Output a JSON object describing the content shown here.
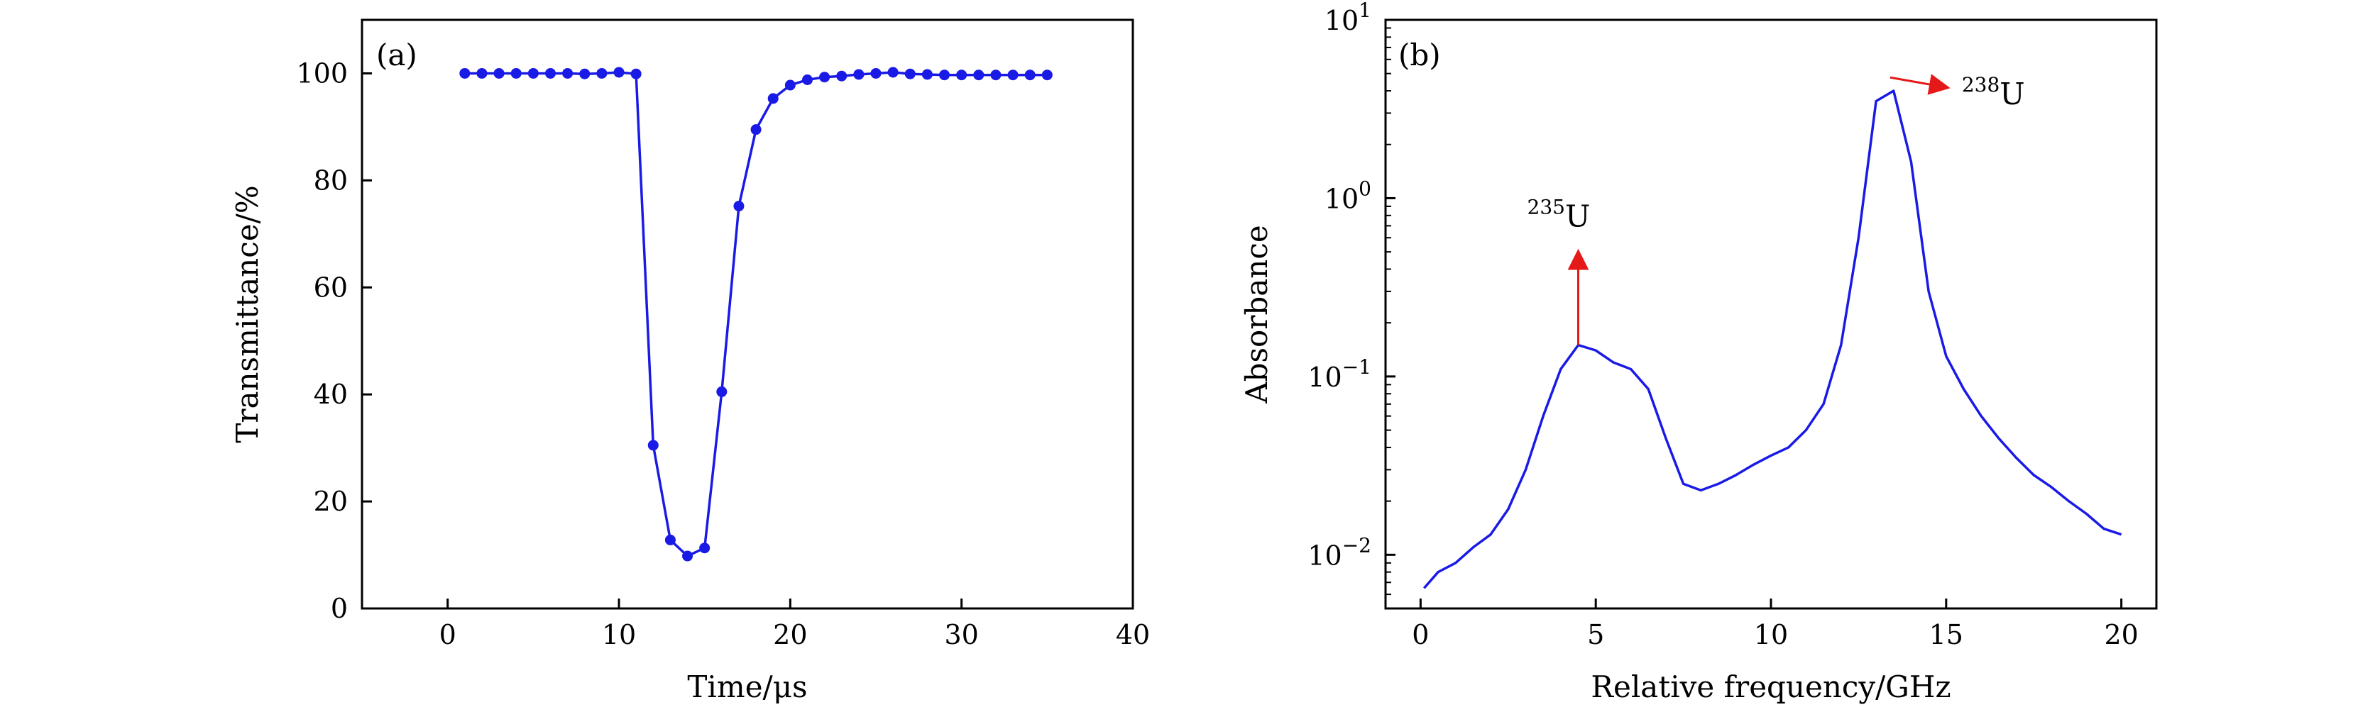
{
  "chart_data": [
    {
      "panel_label": "(a)",
      "type": "line",
      "xlabel": "Time/μs",
      "ylabel": "Transmittance/%",
      "xlim": [
        -5,
        40
      ],
      "ylim": [
        0,
        110
      ],
      "xticks": [
        0,
        10,
        20,
        30,
        40
      ],
      "yticks": [
        0,
        20,
        40,
        60,
        80,
        100
      ],
      "grid": false,
      "series": [
        {
          "color": "#1a1ae6",
          "marker": "circle",
          "x": [
            1,
            2,
            3,
            4,
            5,
            6,
            7,
            8,
            9,
            10,
            11,
            12,
            13,
            14,
            15,
            16,
            17,
            18,
            19,
            20,
            21,
            22,
            23,
            24,
            25,
            26,
            27,
            28,
            29,
            30,
            31,
            32,
            33,
            34,
            35
          ],
          "y": [
            100,
            100,
            100,
            100,
            100,
            100,
            100,
            99.9,
            100,
            100.2,
            99.9,
            30.5,
            12.8,
            9.8,
            11.3,
            40.5,
            75.2,
            89.5,
            95.3,
            97.8,
            98.8,
            99.3,
            99.5,
            99.8,
            100,
            100.2,
            99.9,
            99.8,
            99.7,
            99.7,
            99.7,
            99.7,
            99.7,
            99.7,
            99.7
          ]
        }
      ]
    },
    {
      "panel_label": "(b)",
      "type": "line",
      "xlabel": "Relative frequency/GHz",
      "ylabel": "Absorbance",
      "xlim": [
        -1,
        21
      ],
      "ylim": [
        0.005,
        10
      ],
      "yscale": "log",
      "xticks": [
        0,
        5,
        10,
        15,
        20
      ],
      "yticks": [
        0.01,
        0.1,
        1,
        10
      ],
      "ytick_labels": [
        {
          "base": "10",
          "exp": "−2"
        },
        {
          "base": "10",
          "exp": "−1"
        },
        {
          "base": "10",
          "exp": "0"
        },
        {
          "base": "10",
          "exp": "1"
        }
      ],
      "grid": false,
      "series": [
        {
          "color": "#1a1ae6",
          "x": [
            0.1,
            0.5,
            1,
            1.5,
            2,
            2.5,
            3,
            3.5,
            4,
            4.5,
            5,
            5.5,
            6,
            6.5,
            7,
            7.5,
            8,
            8.5,
            9,
            9.5,
            10,
            10.5,
            11,
            11.5,
            12,
            12.5,
            13,
            13.5,
            14,
            14.5,
            15,
            15.5,
            16,
            16.5,
            17,
            17.5,
            18,
            18.5,
            19,
            19.5,
            20
          ],
          "y": [
            0.0065,
            0.008,
            0.009,
            0.011,
            0.013,
            0.018,
            0.03,
            0.06,
            0.11,
            0.15,
            0.14,
            0.12,
            0.11,
            0.085,
            0.045,
            0.025,
            0.023,
            0.025,
            0.028,
            0.032,
            0.036,
            0.04,
            0.05,
            0.07,
            0.15,
            0.6,
            3.5,
            4.0,
            1.6,
            0.3,
            0.13,
            0.085,
            0.06,
            0.045,
            0.035,
            0.028,
            0.024,
            0.02,
            0.017,
            0.014,
            0.013
          ]
        }
      ],
      "annotations": [
        {
          "iso": "235",
          "element": "U",
          "arrow": "up",
          "x": 4.5,
          "from_y": 0.15,
          "to_y": 0.55,
          "color": "#e61919"
        },
        {
          "iso": "238",
          "element": "U",
          "arrow": "right",
          "x": 13.4,
          "to_x": 15.0,
          "y": 4.5,
          "color": "#e61919"
        }
      ]
    }
  ]
}
